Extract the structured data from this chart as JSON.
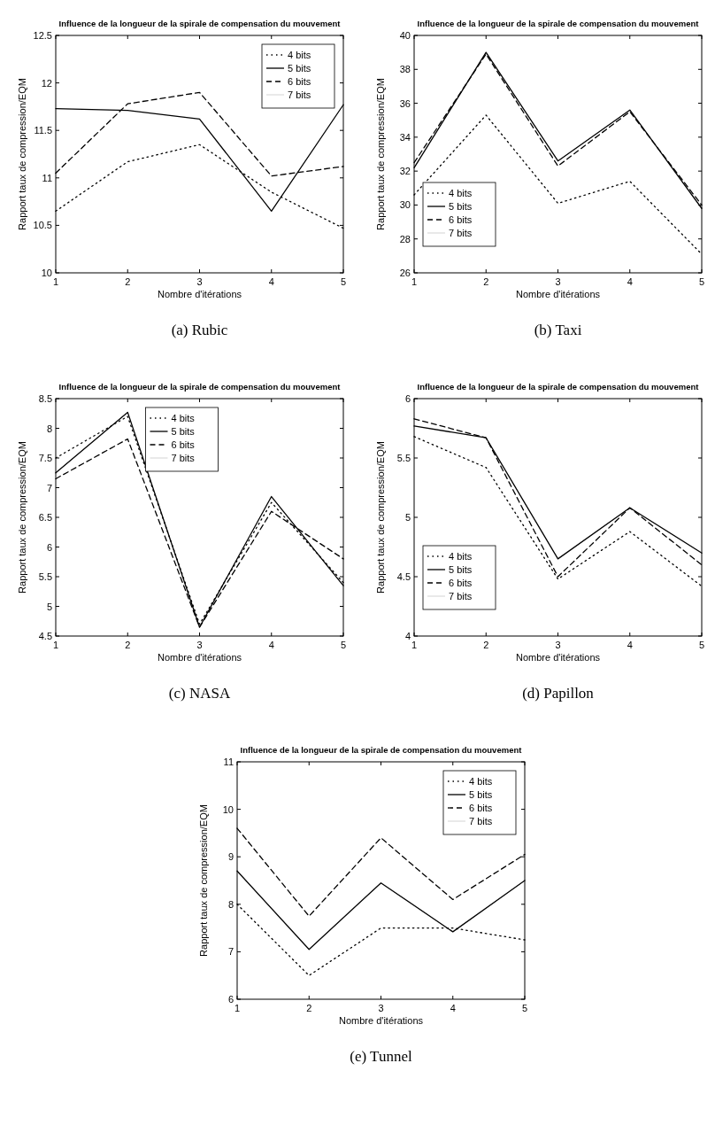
{
  "chart_data": [
    {
      "type": "line",
      "title": "Influence de la longueur de la spirale de compensation du mouvement",
      "xlabel": "Nombre d'itérations",
      "ylabel": "Rapport taux de compression/EQM",
      "annotations": [
        "(a) Rubic"
      ],
      "x": [
        1,
        2,
        3,
        4,
        5
      ],
      "xlim": [
        1,
        5
      ],
      "xticks": [
        1,
        2,
        3,
        4,
        5
      ],
      "ylim": [
        10,
        12.5
      ],
      "yticks": [
        10,
        10.5,
        11,
        11.5,
        12,
        12.5
      ],
      "legend": "top right",
      "grid": false,
      "series": [
        {
          "name": "4 bits",
          "color": "#000000",
          "line_style": "dotted",
          "values": [
            10.65,
            11.17,
            11.35,
            10.85,
            10.47
          ]
        },
        {
          "name": "5 bits",
          "color": "#000000",
          "line_style": "solid",
          "values": [
            11.73,
            11.71,
            11.62,
            10.65,
            11.77
          ]
        },
        {
          "name": "6 bits",
          "color": "#000000",
          "line_style": "dashed",
          "values": [
            11.05,
            11.78,
            11.9,
            11.02,
            11.12
          ]
        },
        {
          "name": "7 bits",
          "color": "#dddddd",
          "line_style": "solid",
          "values": [
            null,
            null,
            null,
            null,
            null
          ]
        }
      ]
    },
    {
      "type": "line",
      "title": "Influence de la longueur de la spirale de compensation du mouvement",
      "xlabel": "Nombre d'itérations",
      "ylabel": "Rapport taux de compression/EQM",
      "annotations": [
        "(b) Taxi"
      ],
      "x": [
        1,
        2,
        3,
        4,
        5
      ],
      "xlim": [
        1,
        5
      ],
      "xticks": [
        1,
        2,
        3,
        4,
        5
      ],
      "ylim": [
        26,
        40
      ],
      "yticks": [
        26,
        28,
        30,
        32,
        34,
        36,
        38,
        40
      ],
      "legend": "bottom left",
      "grid": false,
      "series": [
        {
          "name": "4 bits",
          "color": "#000000",
          "line_style": "dotted",
          "values": [
            30.6,
            35.3,
            30.1,
            31.4,
            27.1
          ]
        },
        {
          "name": "5 bits",
          "color": "#000000",
          "line_style": "solid",
          "values": [
            32.2,
            39,
            32.6,
            35.6,
            29.8
          ]
        },
        {
          "name": "6 bits",
          "color": "#000000",
          "line_style": "dashed",
          "values": [
            32.5,
            38.9,
            32.3,
            35.5,
            30
          ]
        },
        {
          "name": "7 bits",
          "color": "#dddddd",
          "line_style": "solid",
          "values": [
            null,
            null,
            null,
            null,
            null
          ]
        }
      ]
    },
    {
      "type": "line",
      "title": "Influence de la longueur de la spirale de compensation du mouvement",
      "xlabel": "Nombre d'itérations",
      "ylabel": "Rapport taux de compression/EQM",
      "annotations": [
        "(c) NASA"
      ],
      "x": [
        1,
        2,
        3,
        4,
        5
      ],
      "xlim": [
        1,
        5
      ],
      "xticks": [
        1,
        2,
        3,
        4,
        5
      ],
      "ylim": [
        4.5,
        8.5
      ],
      "yticks": [
        4.5,
        5,
        5.5,
        6,
        6.5,
        7,
        7.5,
        8,
        8.5
      ],
      "legend": "top",
      "grid": false,
      "series": [
        {
          "name": "4 bits",
          "color": "#000000",
          "line_style": "dotted",
          "values": [
            7.5,
            8.2,
            4.7,
            6.75,
            5.4
          ]
        },
        {
          "name": "5 bits",
          "color": "#000000",
          "line_style": "solid",
          "values": [
            7.25,
            8.27,
            4.65,
            6.85,
            5.35
          ]
        },
        {
          "name": "6 bits",
          "color": "#000000",
          "line_style": "dashed",
          "values": [
            7.15,
            7.82,
            4.65,
            6.6,
            5.8
          ]
        },
        {
          "name": "7 bits",
          "color": "#dddddd",
          "line_style": "solid",
          "values": [
            null,
            null,
            null,
            null,
            null
          ]
        }
      ]
    },
    {
      "type": "line",
      "title": "Influence de la longueur de la spirale de compensation du mouvement",
      "xlabel": "Nombre d'itérations",
      "ylabel": "Rapport taux de compression/EQM",
      "annotations": [
        "(d) Papillon"
      ],
      "x": [
        1,
        2,
        3,
        4,
        5
      ],
      "xlim": [
        1,
        5
      ],
      "xticks": [
        1,
        2,
        3,
        4,
        5
      ],
      "ylim": [
        4,
        6
      ],
      "yticks": [
        4,
        4.5,
        5,
        5.5,
        6
      ],
      "legend": "bottom left",
      "grid": false,
      "series": [
        {
          "name": "4 bits",
          "color": "#000000",
          "line_style": "dotted",
          "values": [
            5.68,
            5.42,
            4.48,
            4.88,
            4.42
          ]
        },
        {
          "name": "5 bits",
          "color": "#000000",
          "line_style": "solid",
          "values": [
            5.77,
            5.67,
            4.65,
            5.08,
            4.7
          ]
        },
        {
          "name": "6 bits",
          "color": "#000000",
          "line_style": "dashed",
          "values": [
            5.83,
            5.67,
            4.5,
            5.08,
            4.6
          ]
        },
        {
          "name": "7 bits",
          "color": "#dddddd",
          "line_style": "solid",
          "values": [
            null,
            null,
            null,
            null,
            null
          ]
        }
      ]
    },
    {
      "type": "line",
      "title": "Influence de la longueur de la spirale de compensation du mouvement",
      "xlabel": "Nombre d'itérations",
      "ylabel": "Rapport taux de compression/EQM",
      "annotations": [
        "(e) Tunnel"
      ],
      "x": [
        1,
        2,
        3,
        4,
        5
      ],
      "xlim": [
        1,
        5
      ],
      "xticks": [
        1,
        2,
        3,
        4,
        5
      ],
      "ylim": [
        6,
        11
      ],
      "yticks": [
        6,
        7,
        8,
        9,
        10,
        11
      ],
      "legend": "top right",
      "grid": false,
      "series": [
        {
          "name": "4 bits",
          "color": "#000000",
          "line_style": "dotted",
          "values": [
            8,
            6.5,
            7.5,
            7.5,
            7.25
          ]
        },
        {
          "name": "5 bits",
          "color": "#000000",
          "line_style": "solid",
          "values": [
            8.7,
            7.05,
            8.45,
            7.42,
            8.5
          ]
        },
        {
          "name": "6 bits",
          "color": "#000000",
          "line_style": "dashed",
          "values": [
            9.6,
            7.75,
            9.4,
            8.1,
            9.05
          ]
        },
        {
          "name": "7 bits",
          "color": "#dddddd",
          "line_style": "solid",
          "values": [
            null,
            null,
            null,
            null,
            null
          ]
        }
      ]
    }
  ]
}
